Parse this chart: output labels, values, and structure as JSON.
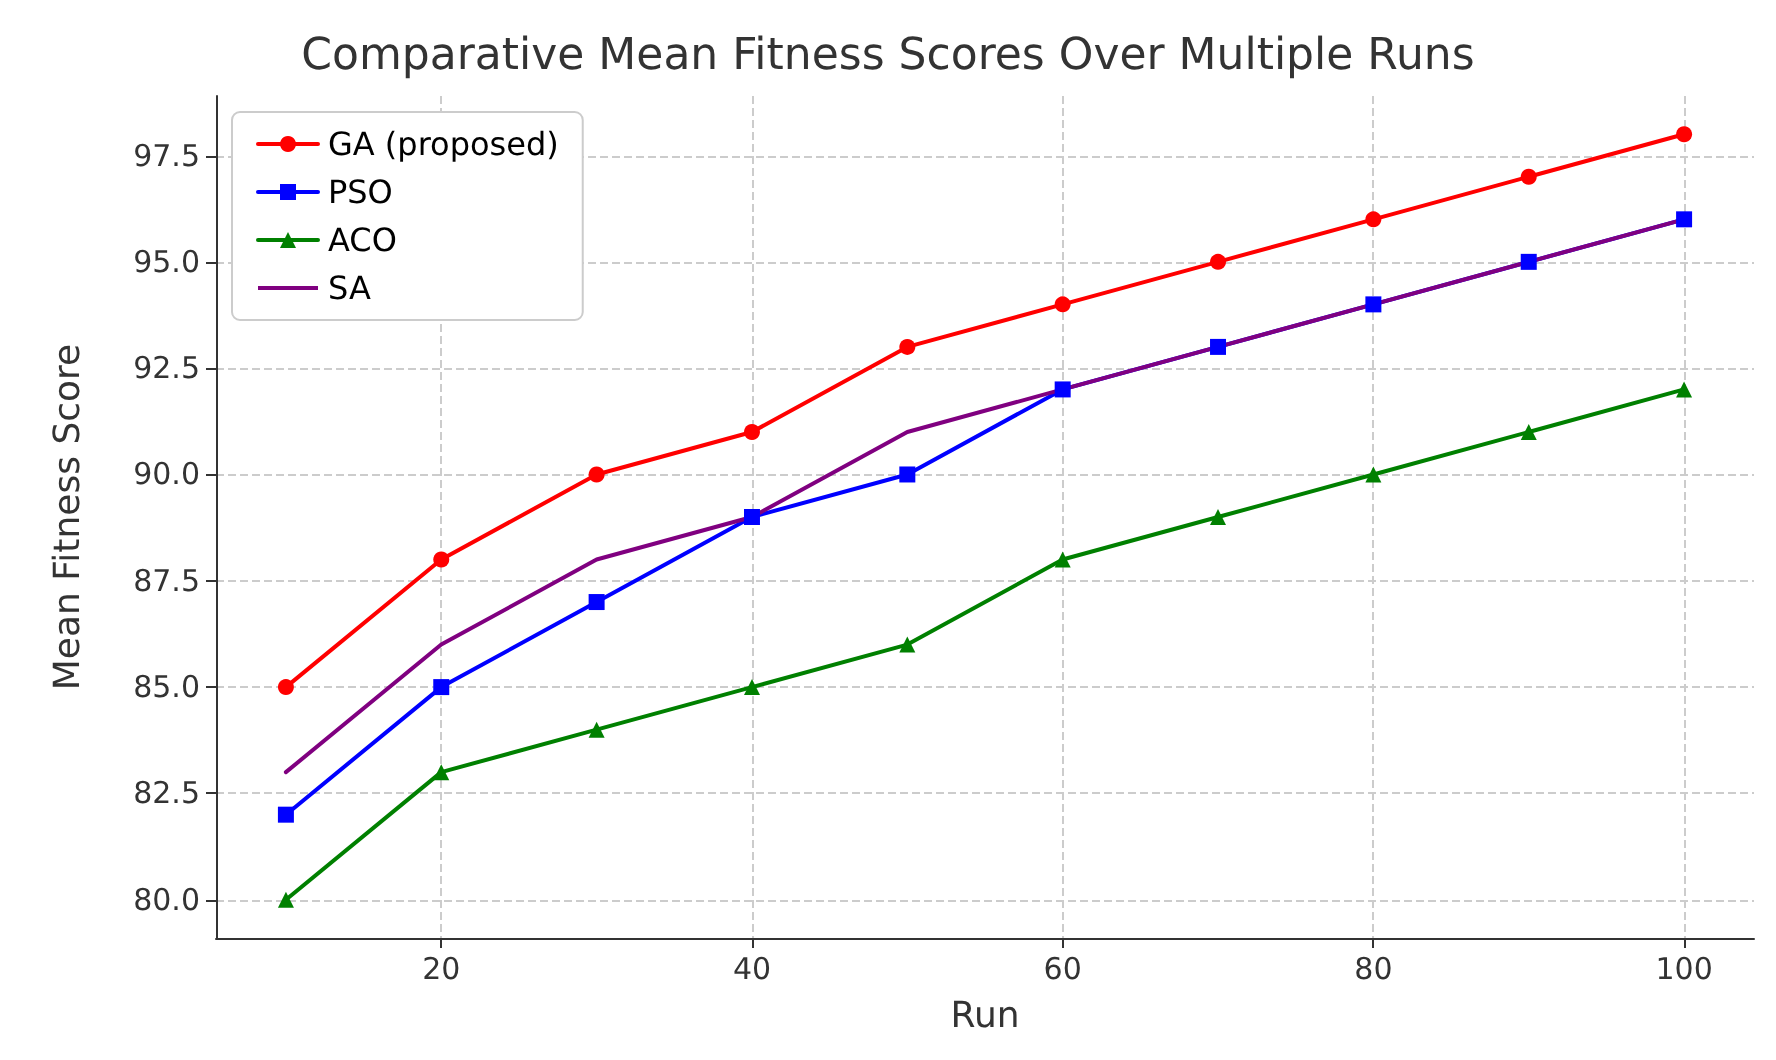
{
  "chart_data": {
    "type": "line",
    "title": "Comparative Mean Fitness Scores Over Multiple Runs",
    "xlabel": "Run",
    "ylabel": "Mean Fitness Score",
    "x": [
      10,
      20,
      30,
      40,
      50,
      60,
      70,
      80,
      90,
      100
    ],
    "series": [
      {
        "name": "GA (proposed)",
        "color": "#ff0000",
        "marker": "circle",
        "values": [
          85,
          88,
          90,
          91,
          93,
          94,
          95,
          96,
          97,
          98
        ]
      },
      {
        "name": "PSO",
        "color": "#0000ff",
        "marker": "square",
        "values": [
          82,
          85,
          87,
          89,
          90,
          92,
          93,
          94,
          95,
          96
        ]
      },
      {
        "name": "ACO",
        "color": "#008000",
        "marker": "triangle",
        "values": [
          80,
          83,
          84,
          85,
          86,
          88,
          89,
          90,
          91,
          92
        ]
      },
      {
        "name": "SA",
        "color": "#800080",
        "marker": "none",
        "values": [
          83,
          86,
          88,
          89,
          91,
          92,
          93,
          94,
          95,
          96
        ]
      }
    ],
    "xlim": [
      5.5,
      104.5
    ],
    "xticks": [
      20,
      40,
      60,
      80,
      100
    ],
    "ylim": [
      79.1,
      98.9
    ],
    "yticks": [
      {
        "value": 80,
        "label": "80.0"
      },
      {
        "value": 82.5,
        "label": "82.5"
      },
      {
        "value": 85,
        "label": "85.0"
      },
      {
        "value": 87.5,
        "label": "87.5"
      },
      {
        "value": 90,
        "label": "90.0"
      },
      {
        "value": 92.5,
        "label": "92.5"
      },
      {
        "value": 95,
        "label": "95.0"
      },
      {
        "value": 97.5,
        "label": "97.5"
      }
    ],
    "grid": true,
    "legend": "top left",
    "line_style": "solid"
  }
}
